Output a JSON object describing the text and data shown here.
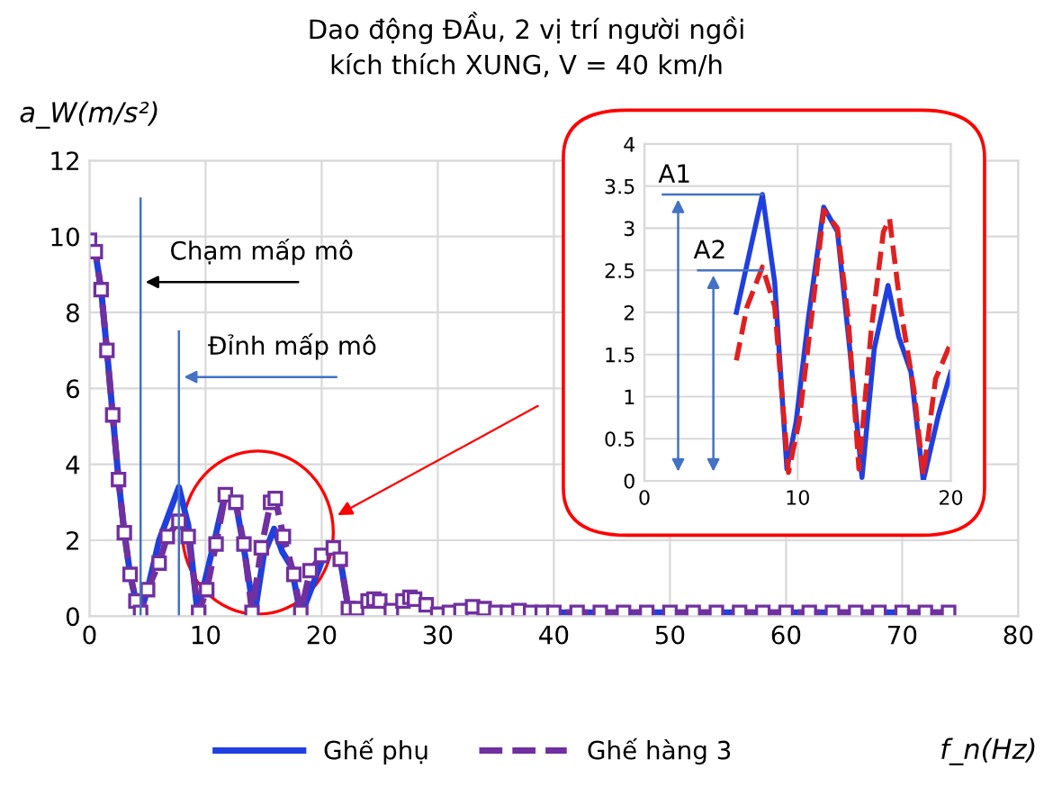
{
  "chart_data": [
    {
      "type": "line",
      "title": "Dao động ĐẦu, 2 vị trí người ngồi\nkích thích XUNG, V = 40 km/h",
      "ylabel": "a_W(m/s²)",
      "xlabel": "f_n(Hz)",
      "xlim": [
        0,
        80
      ],
      "xticks": [
        0,
        10,
        20,
        30,
        40,
        50,
        60,
        70,
        80
      ],
      "ylim": [
        0,
        12
      ],
      "yticks": [
        0,
        2,
        4,
        6,
        8,
        10,
        12
      ],
      "grid": true,
      "legend": "bottom",
      "ref_lines": [
        {
          "axis": "x",
          "value": 4.4,
          "label": "Chạm mấp mô",
          "color": "#4472c4"
        },
        {
          "axis": "x",
          "value": 7.7,
          "label": "Đỉnh mấp mô",
          "color": "#4472c4"
        }
      ],
      "series": [
        {
          "name": "Ghế phụ",
          "color": "#1f3fe0",
          "line_style": "solid",
          "marker": "none",
          "x": [
            0,
            0.5,
            1,
            1.5,
            2,
            2.5,
            3,
            3.5,
            4,
            4.4,
            5,
            6,
            7.7,
            8.5,
            9.3,
            10.7,
            11.7,
            12.6,
            13.4,
            14.2,
            15,
            15.9,
            16.6,
            17.4,
            18.2,
            19.2,
            20.2,
            21,
            21.6,
            22.3,
            23,
            24.5,
            26,
            27.6,
            29,
            30,
            31.5,
            33,
            35,
            37,
            40,
            50,
            60,
            70,
            74
          ],
          "values": [
            9.9,
            9.6,
            8.6,
            7.0,
            5.3,
            3.6,
            2.2,
            1.1,
            0.4,
            0.1,
            0.7,
            2.0,
            3.4,
            2.4,
            0.1,
            1.9,
            3.25,
            3.0,
            1.6,
            0.0,
            1.6,
            2.3,
            1.7,
            1.3,
            0.0,
            0.8,
            1.6,
            1.8,
            1.5,
            0.2,
            0.2,
            0.45,
            0.15,
            0.5,
            0.3,
            0.05,
            0.15,
            0.25,
            0.1,
            0.15,
            0.1,
            0.1,
            0.1,
            0.1,
            0.1
          ]
        },
        {
          "name": "Ghế hàng 3",
          "color": "#7030a0",
          "line_style": "dashed",
          "marker": "square",
          "x": [
            0,
            0.5,
            1,
            1.5,
            2,
            2.5,
            3,
            3.5,
            4,
            4.4,
            5,
            6,
            6.7,
            7.7,
            8.5,
            9.4,
            10.1,
            10.9,
            11.7,
            12.6,
            13.3,
            14,
            14.8,
            15.6,
            16,
            16.7,
            17.6,
            18.2,
            19,
            20,
            21,
            21.6,
            22.3,
            23,
            24,
            24.5,
            25,
            26,
            27,
            27.6,
            28,
            29,
            30,
            31,
            32,
            33,
            34,
            35,
            36,
            37,
            38,
            39,
            40,
            42,
            44,
            46,
            48,
            50,
            52,
            54,
            56,
            58,
            60,
            62,
            64,
            66,
            68,
            70,
            72,
            74
          ],
          "values": [
            9.9,
            9.6,
            8.6,
            7.0,
            5.3,
            3.6,
            2.2,
            1.1,
            0.4,
            0.1,
            0.7,
            1.4,
            2.1,
            2.5,
            2.1,
            0.1,
            0.7,
            1.9,
            3.2,
            3.0,
            1.9,
            0.1,
            1.8,
            3.0,
            3.1,
            2.1,
            1.1,
            0.1,
            1.2,
            1.6,
            1.8,
            1.5,
            0.2,
            0.2,
            0.4,
            0.45,
            0.4,
            0.15,
            0.4,
            0.5,
            0.45,
            0.3,
            0.05,
            0.1,
            0.15,
            0.25,
            0.2,
            0.1,
            0.1,
            0.15,
            0.1,
            0.1,
            0.1,
            0.1,
            0.1,
            0.1,
            0.1,
            0.1,
            0.1,
            0.1,
            0.1,
            0.1,
            0.1,
            0.1,
            0.1,
            0.1,
            0.1,
            0.1,
            0.1,
            0.1
          ]
        }
      ]
    },
    {
      "type": "line",
      "xlim": [
        0,
        20
      ],
      "xticks": [
        0,
        10,
        20
      ],
      "ylim": [
        0,
        4
      ],
      "yticks": [
        0,
        0.5,
        1,
        1.5,
        2,
        2.5,
        3,
        3.5,
        4
      ],
      "grid": true,
      "ref_lines": [
        {
          "axis": "y",
          "value": 3.4,
          "label": "A1",
          "color": "#4472c4"
        },
        {
          "axis": "y",
          "value": 2.5,
          "label": "A2",
          "color": "#4472c4"
        }
      ],
      "series": [
        {
          "color": "#1f3fe0",
          "line_style": "solid",
          "x": [
            6,
            7.7,
            8.5,
            9.3,
            9.9,
            10.7,
            11.7,
            12.6,
            13.4,
            14.2,
            15,
            15.9,
            16.6,
            17.4,
            18.2,
            19.2,
            20
          ],
          "values": [
            2.0,
            3.4,
            2.36,
            0.14,
            0.7,
            1.93,
            3.25,
            2.96,
            1.57,
            0.04,
            1.57,
            2.32,
            1.71,
            1.29,
            0,
            0.79,
            1.29
          ]
        },
        {
          "color": "#e02020",
          "line_style": "dashed",
          "x": [
            6,
            6.7,
            7.7,
            8.5,
            9.4,
            10.1,
            10.9,
            11.7,
            12.6,
            13.3,
            14,
            14.8,
            15.6,
            16,
            16.7,
            17.6,
            18.2,
            19,
            20
          ],
          "values": [
            1.43,
            2.07,
            2.54,
            2.07,
            0.1,
            0.71,
            1.93,
            3.21,
            3.0,
            1.93,
            0.14,
            1.79,
            2.96,
            3.11,
            2.07,
            1.07,
            0.07,
            1.21,
            1.64
          ]
        }
      ]
    }
  ]
}
